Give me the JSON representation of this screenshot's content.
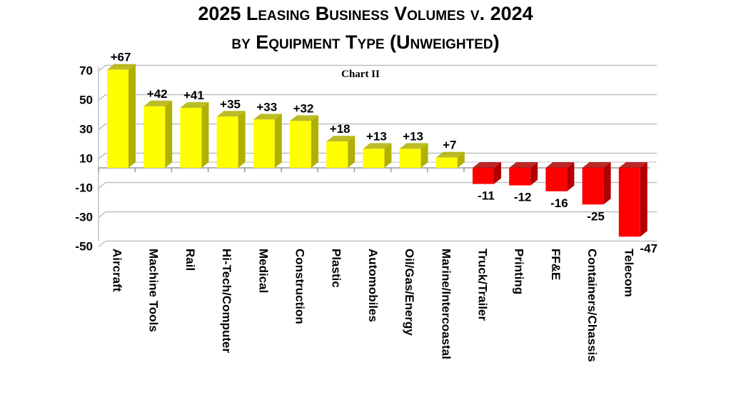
{
  "chart_data": {
    "type": "bar",
    "title": "2025 Leasing Business Volumes v. 2024",
    "subtitle": "by Equipment Type (Unweighted)",
    "annotation": "Chart II",
    "categories": [
      "Aircraft",
      "Machine Tools",
      "Rail",
      "Hi-Tech/Computer",
      "Medical",
      "Construction",
      "Plastic",
      "Automobiles",
      "Oil/Gas/Energy",
      "Marine/Intercoastal",
      "Truck/Trailer",
      "Printing",
      "FF&E",
      "Containers/Chassis",
      "Telecom"
    ],
    "values": [
      67,
      42,
      41,
      35,
      33,
      32,
      18,
      13,
      13,
      7,
      -11,
      -12,
      -16,
      -25,
      -47
    ],
    "data_labels": [
      "+67",
      "+42",
      "+41",
      "+35",
      "+33",
      "+32",
      "+18",
      "+13",
      "+13",
      "+7",
      "-11",
      "-12",
      "-16",
      "-25",
      "-47"
    ],
    "yticks": [
      70,
      50,
      30,
      10,
      -10,
      -30,
      -50
    ],
    "ylim": [
      -50,
      70
    ],
    "xlabel": "",
    "ylabel": "",
    "grid": true,
    "style": "3d-column",
    "colors": {
      "positive": "#ffff00",
      "positive_side": "#b0b000",
      "negative": "#ff0000",
      "negative_side": "#b00000",
      "grid": "#c0c0c0"
    }
  }
}
